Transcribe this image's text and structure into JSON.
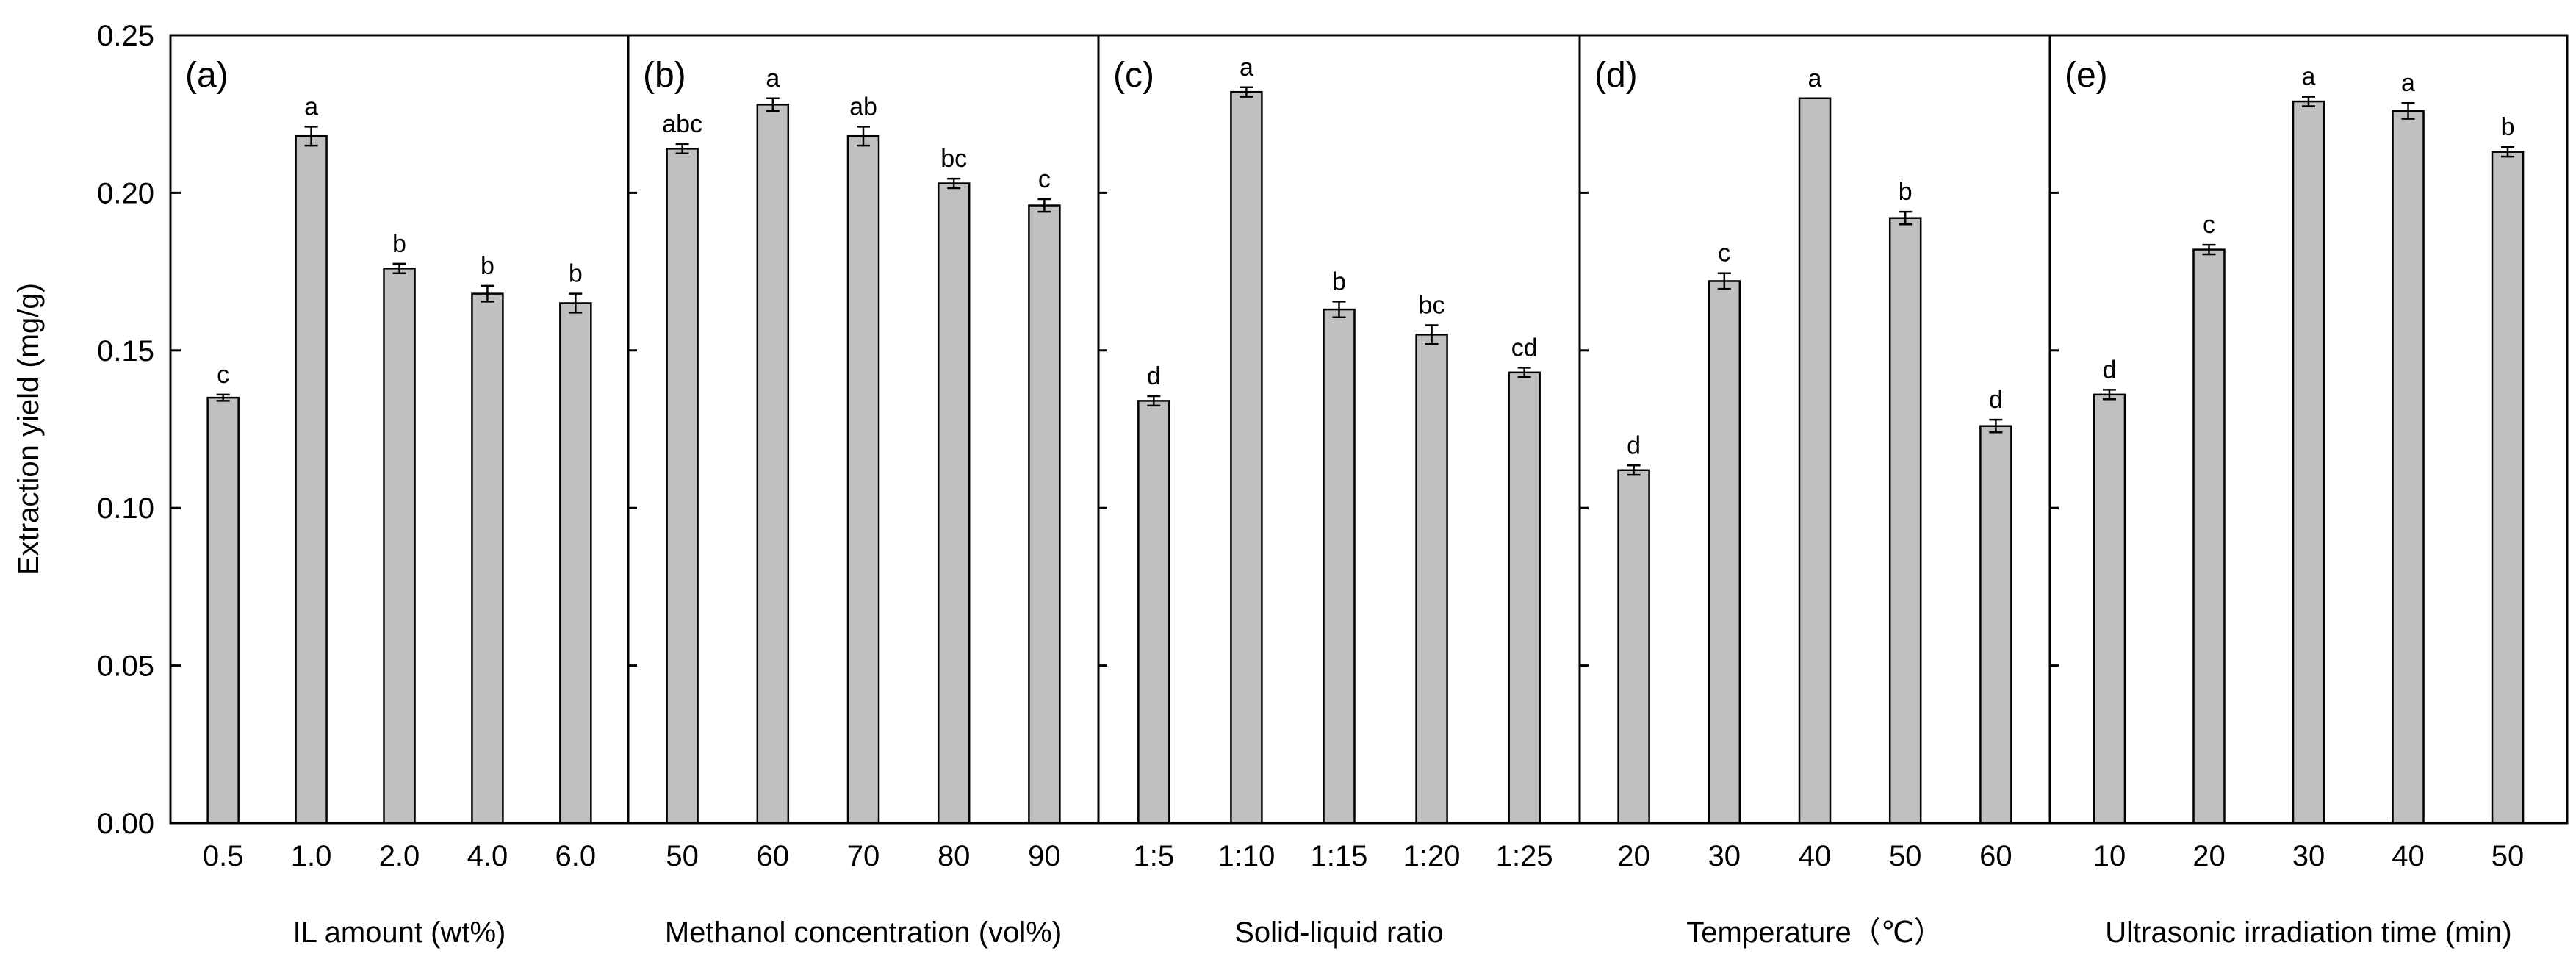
{
  "chart_data": {
    "type": "bar",
    "ylabel": "Extraction yield (mg/g)",
    "ylim": [
      0,
      0.25
    ],
    "yticks": [
      "0.00",
      "0.05",
      "0.10",
      "0.15",
      "0.20",
      "0.25"
    ],
    "grid": false,
    "bar_color": "#c0c0c0",
    "panels": [
      {
        "label": "(a)",
        "xlabel": "IL amount (wt%)",
        "categories": [
          "0.5",
          "1.0",
          "2.0",
          "4.0",
          "6.0"
        ],
        "values": [
          0.135,
          0.218,
          0.176,
          0.168,
          0.165
        ],
        "errors": [
          0.001,
          0.003,
          0.0015,
          0.0025,
          0.003
        ],
        "significance": [
          "c",
          "a",
          "b",
          "b",
          "b"
        ]
      },
      {
        "label": "(b)",
        "xlabel": "Methanol concentration (vol%)",
        "categories": [
          "50",
          "60",
          "70",
          "80",
          "90"
        ],
        "values": [
          0.214,
          0.228,
          0.218,
          0.203,
          0.196
        ],
        "errors": [
          0.0015,
          0.002,
          0.003,
          0.0015,
          0.002
        ],
        "significance": [
          "abc",
          "a",
          "ab",
          "bc",
          "c"
        ]
      },
      {
        "label": "(c)",
        "xlabel": "Solid-liquid ratio",
        "categories": [
          "1:5",
          "1:10",
          "1:15",
          "1:20",
          "1:25"
        ],
        "values": [
          0.134,
          0.232,
          0.163,
          0.155,
          0.143
        ],
        "errors": [
          0.0015,
          0.0015,
          0.0025,
          0.003,
          0.0015
        ],
        "significance": [
          "d",
          "a",
          "b",
          "bc",
          "cd"
        ]
      },
      {
        "label": "(d)",
        "xlabel": "Temperature（℃）",
        "categories": [
          "20",
          "30",
          "40",
          "50",
          "60"
        ],
        "values": [
          0.112,
          0.172,
          0.23,
          0.192,
          0.126
        ],
        "errors": [
          0.0015,
          0.0025,
          0.0,
          0.002,
          0.002
        ],
        "significance": [
          "d",
          "c",
          "a",
          "b",
          "d"
        ]
      },
      {
        "label": "(e)",
        "xlabel": "Ultrasonic irradiation time (min)",
        "categories": [
          "10",
          "20",
          "30",
          "40",
          "50"
        ],
        "values": [
          0.136,
          0.182,
          0.229,
          0.226,
          0.213
        ],
        "errors": [
          0.0015,
          0.0015,
          0.0015,
          0.0025,
          0.0015
        ],
        "significance": [
          "d",
          "c",
          "a",
          "a",
          "b"
        ]
      }
    ]
  }
}
